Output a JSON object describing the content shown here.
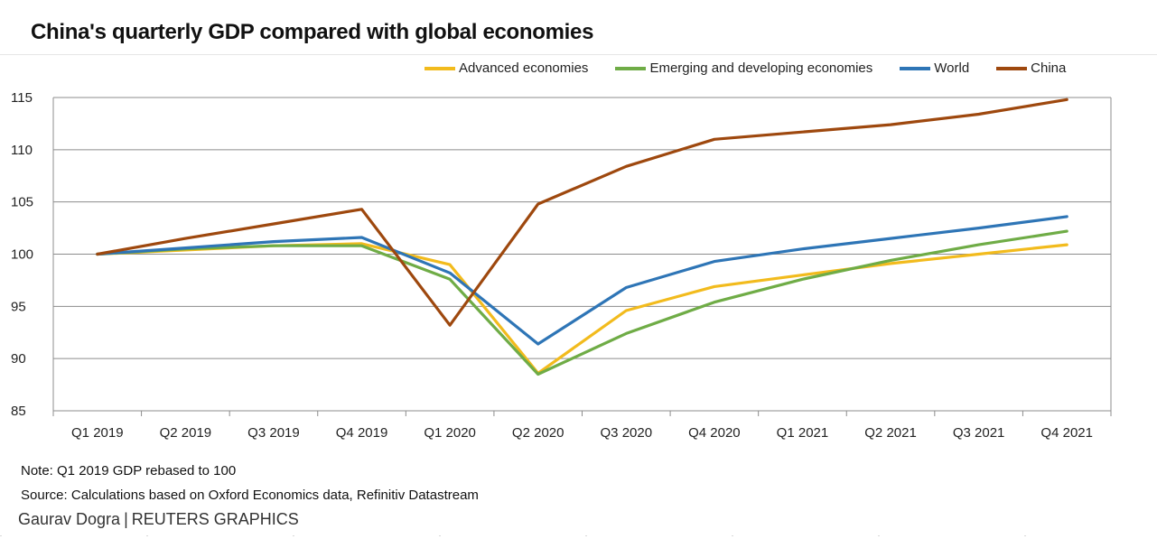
{
  "chart_data": {
    "type": "line",
    "title": "China's quarterly GDP compared with global economies",
    "categories": [
      "Q1 2019",
      "Q2 2019",
      "Q3 2019",
      "Q4 2019",
      "Q1 2020",
      "Q2 2020",
      "Q3 2020",
      "Q4 2020",
      "Q1 2021",
      "Q2 2021",
      "Q3 2021",
      "Q4 2021"
    ],
    "ylim": [
      85,
      115
    ],
    "yticks": [
      85,
      90,
      95,
      100,
      105,
      110,
      115
    ],
    "grid": true,
    "legend_position": "top-right",
    "series": [
      {
        "name": "Advanced economies",
        "color": "#f2bb1d",
        "values": [
          100,
          100.4,
          100.8,
          101.0,
          99.0,
          88.6,
          94.6,
          96.9,
          98.0,
          99.1,
          100.0,
          100.9
        ]
      },
      {
        "name": "Emerging and developing economies",
        "color": "#6fac46",
        "values": [
          100,
          100.5,
          100.8,
          100.8,
          97.6,
          88.5,
          92.4,
          95.4,
          97.6,
          99.4,
          100.9,
          102.2
        ]
      },
      {
        "name": "World",
        "color": "#2e75b6",
        "values": [
          100,
          100.6,
          101.2,
          101.6,
          98.2,
          91.4,
          96.8,
          99.3,
          100.5,
          101.5,
          102.5,
          103.6
        ]
      },
      {
        "name": "China",
        "color": "#9e480e",
        "values": [
          100,
          101.5,
          102.9,
          104.3,
          93.2,
          104.8,
          108.4,
          111.0,
          111.7,
          112.4,
          113.4,
          114.8
        ]
      }
    ]
  },
  "note": "Note: Q1 2019 GDP rebased to 100",
  "source": "Source: Calculations based on Oxford Economics data, Refinitiv Datastream",
  "credit": {
    "author": "Gaurav Dogra",
    "separator": "|",
    "org": "REUTERS GRAPHICS"
  }
}
